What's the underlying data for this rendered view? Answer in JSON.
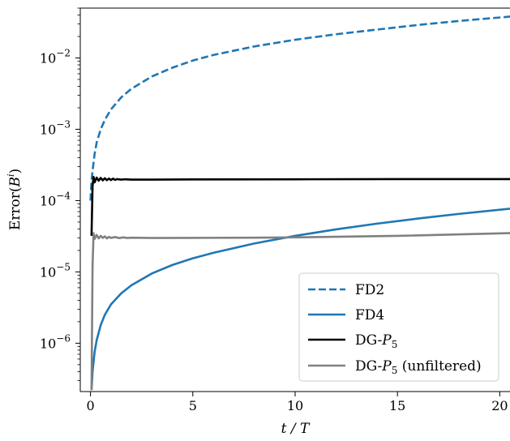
{
  "chart_data": {
    "type": "line",
    "xlabel": "t / T",
    "ylabel": "Error(B^i)",
    "xlim": [
      -0.5,
      20.5
    ],
    "ylim": [
      2.1e-07,
      0.05
    ],
    "yscale": "log",
    "x_ticks": [
      0,
      5,
      10,
      15,
      20
    ],
    "x_tick_labels": [
      "0",
      "5",
      "10",
      "15",
      "20"
    ],
    "y_ticks": [
      1e-06,
      1e-05,
      0.0001,
      0.001,
      0.01
    ],
    "y_tick_labels": [
      "10^-6",
      "10^-5",
      "10^-4",
      "10^-3",
      "10^-2"
    ],
    "legend_position": "lower-right",
    "series": [
      {
        "name": "FD2",
        "color": "#1f77b4",
        "dash": "dashed",
        "x": [
          0.0,
          0.05,
          0.1,
          0.2,
          0.3,
          0.5,
          0.7,
          1.0,
          1.5,
          2.0,
          3.0,
          4.0,
          5.0,
          6.0,
          8.0,
          10.0,
          12.0,
          14.0,
          16.0,
          18.0,
          20.5
        ],
        "y": [
          0.0001,
          0.00019,
          0.00026,
          0.00045,
          0.00065,
          0.001,
          0.00135,
          0.0019,
          0.0028,
          0.0037,
          0.0055,
          0.0073,
          0.0092,
          0.011,
          0.0145,
          0.018,
          0.0215,
          0.025,
          0.029,
          0.033,
          0.038
        ]
      },
      {
        "name": "FD4",
        "color": "#1f77b4",
        "dash": "solid",
        "x": [
          0.05,
          0.1,
          0.2,
          0.3,
          0.5,
          0.7,
          1.0,
          1.5,
          2.0,
          3.0,
          4.0,
          5.0,
          6.0,
          7.0,
          8.0,
          10.0,
          12.0,
          14.0,
          16.0,
          18.0,
          20.5
        ],
        "y": [
          2.2e-07,
          4e-07,
          7.5e-07,
          1.1e-06,
          1.8e-06,
          2.5e-06,
          3.5e-06,
          5e-06,
          6.5e-06,
          9.5e-06,
          1.25e-05,
          1.55e-05,
          1.85e-05,
          2.15e-05,
          2.5e-05,
          3.2e-05,
          3.95e-05,
          4.75e-05,
          5.6e-05,
          6.5e-05,
          7.7e-05
        ]
      },
      {
        "name": "DG-P5",
        "color": "#000000",
        "dash": "solid",
        "x": [
          0.05,
          0.1,
          0.15,
          0.2,
          0.3,
          0.4,
          0.5,
          0.6,
          0.7,
          0.8,
          0.9,
          1.0,
          1.1,
          1.2,
          1.3,
          1.5,
          1.7,
          2.0,
          3.0,
          5.0,
          10.0,
          15.0,
          20.5
        ],
        "y": [
          3.2e-05,
          0.00016,
          0.000215,
          0.00018,
          0.00021,
          0.00019,
          0.000208,
          0.000192,
          0.000206,
          0.000193,
          0.000204,
          0.000194,
          0.000203,
          0.000195,
          0.0002,
          0.000197,
          0.000199,
          0.000197,
          0.000197,
          0.000198,
          0.000199,
          0.0002,
          0.0002
        ]
      },
      {
        "name": "DG-P5 (unfiltered)",
        "color": "#808080",
        "dash": "solid",
        "x": [
          0.05,
          0.1,
          0.15,
          0.2,
          0.3,
          0.4,
          0.5,
          0.6,
          0.7,
          0.8,
          0.9,
          1.0,
          1.2,
          1.4,
          1.6,
          1.8,
          2.0,
          3.0,
          5.0,
          8.0,
          10.0,
          15.0,
          20.5
        ],
        "y": [
          2.2e-07,
          1.2e-05,
          3.5e-05,
          2.9e-05,
          3.3e-05,
          2.95e-05,
          3.2e-05,
          3e-05,
          3.15e-05,
          2.95e-05,
          3.1e-05,
          3e-05,
          3.08e-05,
          2.98e-05,
          3.05e-05,
          2.99e-05,
          3.02e-05,
          2.99e-05,
          3e-05,
          3.02e-05,
          3.05e-05,
          3.2e-05,
          3.5e-05
        ]
      }
    ]
  }
}
